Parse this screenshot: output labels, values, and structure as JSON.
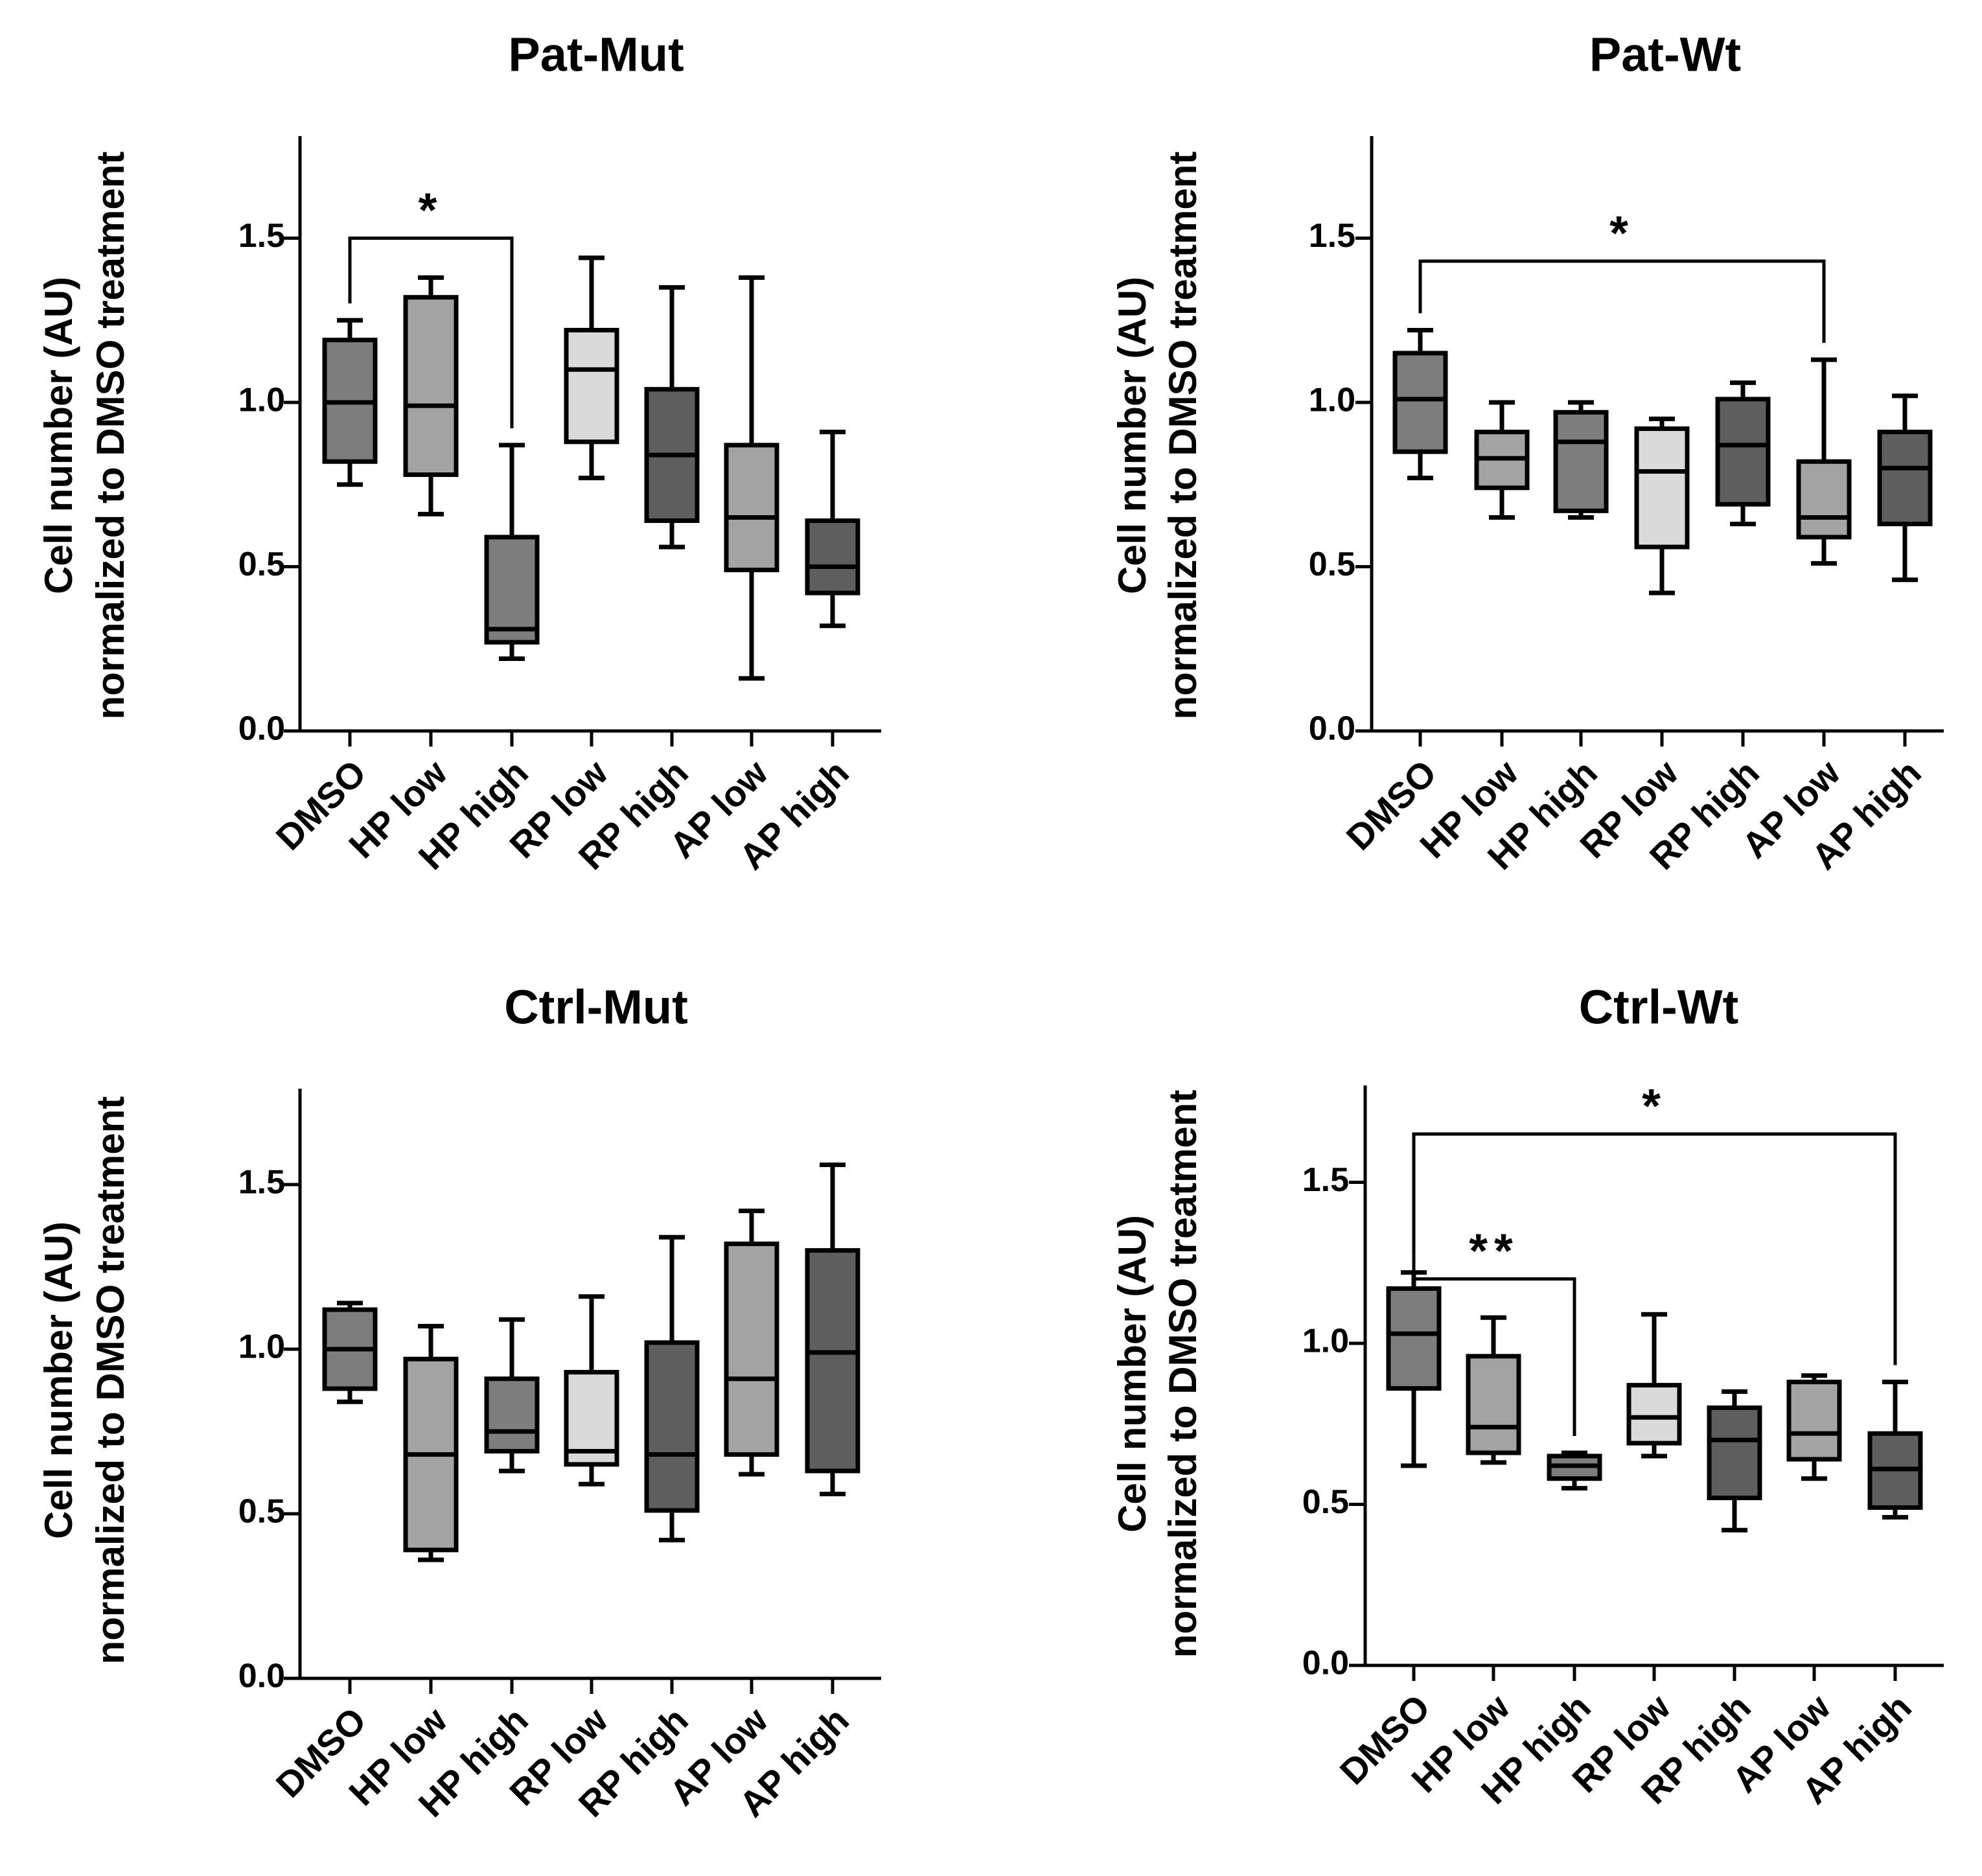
{
  "figure": {
    "colors": {
      "dark": "#5e5e5e",
      "medium": "#7d7d7d",
      "light": "#a3a3a3",
      "lightest": "#dadada",
      "line": "#000000"
    }
  },
  "chart_data": [
    {
      "type": "box",
      "title": "Pat-Mut",
      "ylabel_line1": "Cell number (AU)",
      "ylabel_line2": "normalized to DMSO treatment",
      "ylim": [
        0.0,
        1.8
      ],
      "yticks": [
        "0.0",
        "0.5",
        "1.0",
        "1.5"
      ],
      "categories": [
        "DMSO",
        "HP low",
        "HP high",
        "RP low",
        "RP high",
        "AP low",
        "AP high"
      ],
      "boxes": [
        {
          "min": 0.75,
          "q1": 0.82,
          "median": 1.0,
          "q3": 1.19,
          "max": 1.25,
          "color": "medium"
        },
        {
          "min": 0.66,
          "q1": 0.78,
          "median": 0.99,
          "q3": 1.32,
          "max": 1.38,
          "color": "light"
        },
        {
          "min": 0.22,
          "q1": 0.27,
          "median": 0.31,
          "q3": 0.59,
          "max": 0.87,
          "color": "medium"
        },
        {
          "min": 0.77,
          "q1": 0.88,
          "median": 1.1,
          "q3": 1.22,
          "max": 1.44,
          "color": "lightest"
        },
        {
          "min": 0.56,
          "q1": 0.64,
          "median": 0.84,
          "q3": 1.04,
          "max": 1.35,
          "color": "dark"
        },
        {
          "min": 0.16,
          "q1": 0.49,
          "median": 0.65,
          "q3": 0.87,
          "max": 1.38,
          "color": "light"
        },
        {
          "min": 0.32,
          "q1": 0.42,
          "median": 0.5,
          "q3": 0.64,
          "max": 0.91,
          "color": "dark"
        }
      ],
      "significance": [
        {
          "from": 0,
          "to": 2,
          "level": 1.5,
          "label": "*"
        }
      ]
    },
    {
      "type": "box",
      "title": "Pat-Wt",
      "ylabel_line1": "Cell number (AU)",
      "ylabel_line2": "normalized to DMSO treatment",
      "ylim": [
        0.0,
        1.8
      ],
      "yticks": [
        "0.0",
        "0.5",
        "1.0",
        "1.5"
      ],
      "categories": [
        "DMSO",
        "HP low",
        "HP high",
        "RP low",
        "RP high",
        "AP low",
        "AP high"
      ],
      "boxes": [
        {
          "min": 0.77,
          "q1": 0.85,
          "median": 1.01,
          "q3": 1.15,
          "max": 1.22,
          "color": "medium"
        },
        {
          "min": 0.65,
          "q1": 0.74,
          "median": 0.83,
          "q3": 0.91,
          "max": 1.0,
          "color": "light"
        },
        {
          "min": 0.65,
          "q1": 0.67,
          "median": 0.88,
          "q3": 0.97,
          "max": 1.0,
          "color": "medium"
        },
        {
          "min": 0.42,
          "q1": 0.56,
          "median": 0.79,
          "q3": 0.92,
          "max": 0.95,
          "color": "lightest"
        },
        {
          "min": 0.63,
          "q1": 0.69,
          "median": 0.87,
          "q3": 1.01,
          "max": 1.06,
          "color": "dark"
        },
        {
          "min": 0.51,
          "q1": 0.59,
          "median": 0.65,
          "q3": 0.82,
          "max": 1.13,
          "color": "light"
        },
        {
          "min": 0.46,
          "q1": 0.63,
          "median": 0.8,
          "q3": 0.91,
          "max": 1.02,
          "color": "dark"
        }
      ],
      "significance": [
        {
          "from": 0,
          "to": 5,
          "level": 1.43,
          "label": "*"
        }
      ]
    },
    {
      "type": "box",
      "title": "Ctrl-Mut",
      "ylabel_line1": "Cell number (AU)",
      "ylabel_line2": "normalized to DMSO treatment",
      "ylim": [
        0.0,
        1.8
      ],
      "yticks": [
        "0.0",
        "0.5",
        "1.0",
        "1.5"
      ],
      "categories": [
        "DMSO",
        "HP low",
        "HP high",
        "RP low",
        "RP high",
        "AP low",
        "AP high"
      ],
      "boxes": [
        {
          "min": 0.84,
          "q1": 0.88,
          "median": 1.0,
          "q3": 1.12,
          "max": 1.14,
          "color": "medium"
        },
        {
          "min": 0.36,
          "q1": 0.39,
          "median": 0.68,
          "q3": 0.97,
          "max": 1.07,
          "color": "light"
        },
        {
          "min": 0.63,
          "q1": 0.69,
          "median": 0.75,
          "q3": 0.91,
          "max": 1.09,
          "color": "medium"
        },
        {
          "min": 0.59,
          "q1": 0.65,
          "median": 0.69,
          "q3": 0.93,
          "max": 1.16,
          "color": "lightest"
        },
        {
          "min": 0.42,
          "q1": 0.51,
          "median": 0.68,
          "q3": 1.02,
          "max": 1.34,
          "color": "dark"
        },
        {
          "min": 0.62,
          "q1": 0.68,
          "median": 0.91,
          "q3": 1.32,
          "max": 1.42,
          "color": "light"
        },
        {
          "min": 0.56,
          "q1": 0.63,
          "median": 0.99,
          "q3": 1.3,
          "max": 1.56,
          "color": "dark"
        }
      ],
      "significance": []
    },
    {
      "type": "box",
      "title": "Ctrl-Wt",
      "ylabel_line1": "Cell number (AU)",
      "ylabel_line2": "normalized to DMSO treatment",
      "ylim": [
        0.0,
        1.8
      ],
      "yticks": [
        "0.0",
        "0.5",
        "1.0",
        "1.5"
      ],
      "categories": [
        "DMSO",
        "HP low",
        "HP high",
        "RP low",
        "RP high",
        "AP low",
        "AP high"
      ],
      "boxes": [
        {
          "min": 0.62,
          "q1": 0.86,
          "median": 1.03,
          "q3": 1.17,
          "max": 1.22,
          "color": "medium"
        },
        {
          "min": 0.63,
          "q1": 0.66,
          "median": 0.74,
          "q3": 0.96,
          "max": 1.08,
          "color": "light"
        },
        {
          "min": 0.55,
          "q1": 0.58,
          "median": 0.62,
          "q3": 0.65,
          "max": 0.66,
          "color": "medium"
        },
        {
          "min": 0.65,
          "q1": 0.69,
          "median": 0.77,
          "q3": 0.87,
          "max": 1.09,
          "color": "lightest"
        },
        {
          "min": 0.42,
          "q1": 0.52,
          "median": 0.7,
          "q3": 0.8,
          "max": 0.85,
          "color": "dark"
        },
        {
          "min": 0.58,
          "q1": 0.64,
          "median": 0.72,
          "q3": 0.88,
          "max": 0.9,
          "color": "light"
        },
        {
          "min": 0.46,
          "q1": 0.49,
          "median": 0.61,
          "q3": 0.72,
          "max": 0.88,
          "color": "dark"
        }
      ],
      "significance": [
        {
          "from": 0,
          "to": 6,
          "level": 1.65,
          "label": "*"
        },
        {
          "from": 0,
          "to": 2,
          "level": 1.2,
          "label": "**"
        }
      ]
    }
  ]
}
